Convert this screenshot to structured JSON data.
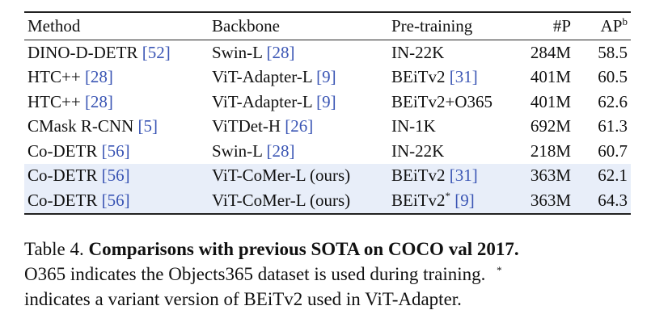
{
  "table": {
    "headers": {
      "method": "Method",
      "backbone": "Backbone",
      "pretraining": "Pre-training",
      "params": "#P",
      "ap": "AP",
      "ap_sup": "b"
    },
    "rows": [
      {
        "method": "DINO-D-DETR",
        "method_ref": "[52]",
        "backbone": "Swin-L",
        "backbone_ref": "[28]",
        "pretrain": "IN-22K",
        "pretrain_sup": "",
        "pretrain_ref": "",
        "params": "284M",
        "ap": "58.5",
        "highlight": false
      },
      {
        "method": "HTC++",
        "method_ref": "[28]",
        "backbone": "ViT-Adapter-L",
        "backbone_ref": "[9]",
        "pretrain": "BEiTv2",
        "pretrain_sup": "",
        "pretrain_ref": "[31]",
        "params": "401M",
        "ap": "60.5",
        "highlight": false
      },
      {
        "method": "HTC++",
        "method_ref": "[28]",
        "backbone": "ViT-Adapter-L",
        "backbone_ref": "[9]",
        "pretrain": "BEiTv2+O365",
        "pretrain_sup": "",
        "pretrain_ref": "",
        "params": "401M",
        "ap": "62.6",
        "highlight": false
      },
      {
        "method": "CMask R-CNN",
        "method_ref": "[5]",
        "backbone": "ViTDet-H",
        "backbone_ref": "[26]",
        "pretrain": "IN-1K",
        "pretrain_sup": "",
        "pretrain_ref": "",
        "params": "692M",
        "ap": "61.3",
        "highlight": false
      },
      {
        "method": "Co-DETR",
        "method_ref": "[56]",
        "backbone": "Swin-L",
        "backbone_ref": "[28]",
        "pretrain": "IN-22K",
        "pretrain_sup": "",
        "pretrain_ref": "",
        "params": "218M",
        "ap": "60.7",
        "highlight": false
      },
      {
        "method": "Co-DETR",
        "method_ref": "[56]",
        "backbone": "ViT-CoMer-L (ours)",
        "backbone_ref": "",
        "pretrain": "BEiTv2",
        "pretrain_sup": "",
        "pretrain_ref": "[31]",
        "params": "363M",
        "ap": "62.1",
        "highlight": true
      },
      {
        "method": "Co-DETR",
        "method_ref": "[56]",
        "backbone": "ViT-CoMer-L (ours)",
        "backbone_ref": "",
        "pretrain": "BEiTv2",
        "pretrain_sup": "*",
        "pretrain_ref": "[9]",
        "params": "363M",
        "ap": "64.3",
        "highlight": true
      }
    ]
  },
  "caption": {
    "label": "Table 4.",
    "title": "Comparisons with previous SOTA on COCO val 2017.",
    "line1": "O365 indicates the Objects365 dataset is used during training.",
    "star": "*",
    "line2": "indicates a variant version of BEiTv2 used in ViT-Adapter."
  }
}
